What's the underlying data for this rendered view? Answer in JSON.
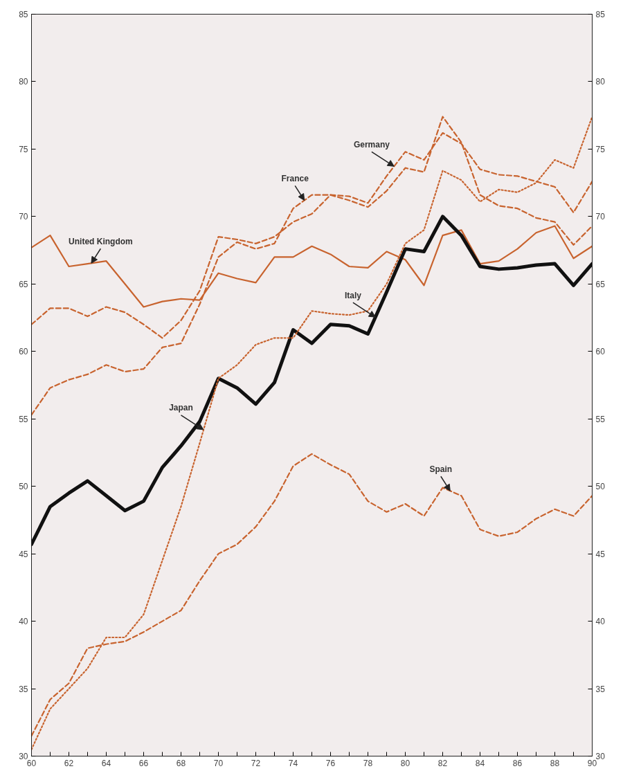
{
  "chart_data": {
    "type": "line",
    "x": [
      60,
      61,
      62,
      63,
      64,
      65,
      66,
      67,
      68,
      69,
      70,
      71,
      72,
      73,
      74,
      75,
      76,
      77,
      78,
      79,
      80,
      81,
      82,
      83,
      84,
      85,
      86,
      87,
      88,
      89,
      90
    ],
    "series": [
      {
        "color": "#c8632e",
        "line_style": "solid",
        "values": [
          67.7,
          68.6,
          66.3,
          66.5,
          66.7,
          65.0,
          63.3,
          63.7,
          63.9,
          63.8,
          65.8,
          65.4,
          65.1,
          67.0,
          67.0,
          67.8,
          67.2,
          66.3,
          66.2,
          67.4,
          66.8,
          64.9,
          68.6,
          69.0,
          66.5,
          66.7,
          67.6,
          68.8,
          69.3,
          66.9,
          67.8
        ]
      },
      {
        "color": "#c8632e",
        "line_style": "dashed",
        "values": [
          55.3,
          57.3,
          57.9,
          58.3,
          59.0,
          58.5,
          58.7,
          60.3,
          60.6,
          63.5,
          67.0,
          68.1,
          67.6,
          68.0,
          70.6,
          71.6,
          71.6,
          71.2,
          70.7,
          71.9,
          73.6,
          73.3,
          77.4,
          75.5,
          71.6,
          70.8,
          70.6,
          69.9,
          69.6,
          67.9,
          69.3
        ]
      },
      {
        "color": "#c8632e",
        "line_style": "dashed",
        "values": [
          62.0,
          63.2,
          63.2,
          62.6,
          63.3,
          62.9,
          62.0,
          61.0,
          62.3,
          64.5,
          68.5,
          68.3,
          68.0,
          68.5,
          69.6,
          70.2,
          71.6,
          71.5,
          71.0,
          73.0,
          74.8,
          74.2,
          76.2,
          75.4,
          73.5,
          73.1,
          73.0,
          72.6,
          72.2,
          70.3,
          72.6
        ]
      },
      {
        "color": "#111111",
        "line_style": "solid",
        "values": [
          45.7,
          48.5,
          49.5,
          50.4,
          49.3,
          48.2,
          48.9,
          51.4,
          53.0,
          54.8,
          58.0,
          57.3,
          56.1,
          57.7,
          61.6,
          60.6,
          62.0,
          61.9,
          61.3,
          64.4,
          67.6,
          67.4,
          70.0,
          68.6,
          66.3,
          66.1,
          66.2,
          66.4,
          66.5,
          64.9,
          66.5
        ]
      },
      {
        "color": "#c8632e",
        "line_style": "dotted",
        "values": [
          30.5,
          33.5,
          35.0,
          36.5,
          38.8,
          38.8,
          40.5,
          44.5,
          48.5,
          53.2,
          58.0,
          59.0,
          60.5,
          61.0,
          61.0,
          63.0,
          62.8,
          62.7,
          63.0,
          65.0,
          68.0,
          69.0,
          73.4,
          72.7,
          71.1,
          72.0,
          71.8,
          72.5,
          74.2,
          73.6,
          77.4
        ]
      },
      {
        "color": "#c8632e",
        "line_style": "dashed",
        "values": [
          31.5,
          34.2,
          35.4,
          38.0,
          38.3,
          38.5,
          39.2,
          40.0,
          40.8,
          43.0,
          45.0,
          45.7,
          47.0,
          48.9,
          51.5,
          52.4,
          51.6,
          50.9,
          48.9,
          48.1,
          48.7,
          47.8,
          49.9,
          49.3,
          46.8,
          46.3,
          46.6,
          47.6,
          48.3,
          47.8,
          49.3
        ]
      }
    ],
    "annotations": [
      {
        "text": "United Kingdom",
        "x": 63.2,
        "y": 66.54
      },
      {
        "text": "France",
        "x": 74.6,
        "y": 71.2
      },
      {
        "text": "Germany",
        "x": 79.4,
        "y": 73.72
      },
      {
        "text": "Italy",
        "x": 78.4,
        "y": 62.54
      },
      {
        "text": "Japan",
        "x": 69.2,
        "y": 54.2
      },
      {
        "text": "Spain",
        "x": 82.4,
        "y": 49.66
      }
    ],
    "xlim": [
      60,
      90
    ],
    "ylim": [
      30,
      85
    ],
    "xticks": [
      60,
      {
        "value": 61,
        "label": null
      },
      62,
      {
        "value": 63,
        "label": null
      },
      64,
      {
        "value": 65,
        "label": null
      },
      66,
      {
        "value": 67,
        "label": null
      },
      68,
      {
        "value": 69,
        "label": null
      },
      70,
      {
        "value": 71,
        "label": null
      },
      72,
      {
        "value": 73,
        "label": null
      },
      74,
      {
        "value": 75,
        "label": null
      },
      76,
      {
        "value": 77,
        "label": null
      },
      78,
      {
        "value": 79,
        "label": null
      },
      80,
      {
        "value": 81,
        "label": null
      },
      82,
      {
        "value": 83,
        "label": null
      },
      84,
      {
        "value": 85,
        "label": null
      },
      86,
      {
        "value": 87,
        "label": null
      },
      88,
      {
        "value": 89,
        "label": null
      },
      90
    ],
    "yticks": [
      30,
      35,
      40,
      45,
      50,
      55,
      60,
      65,
      70,
      75,
      80,
      85
    ],
    "y2lim": [
      30,
      85
    ],
    "y2ticks": [
      30,
      35,
      40,
      45,
      50,
      55,
      60,
      65,
      70,
      75,
      80,
      85
    ],
    "grid": false,
    "marker": "none"
  }
}
